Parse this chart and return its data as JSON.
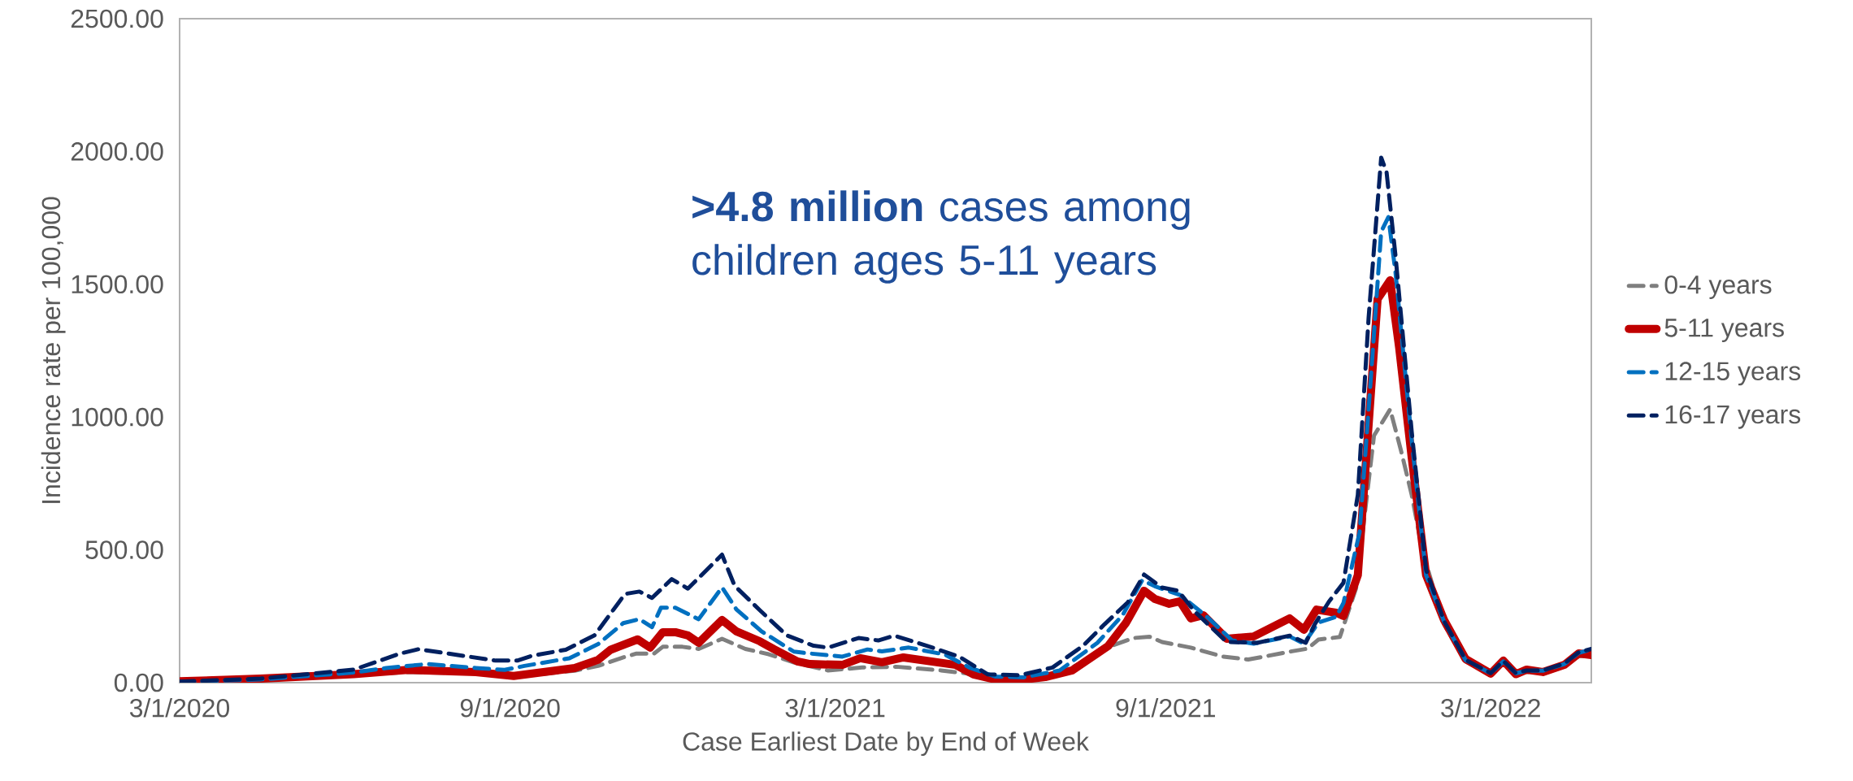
{
  "chart_data": {
    "type": "line",
    "xlabel": "Case Earliest Date by End of Week",
    "ylabel": "Incidence rate per 100,000",
    "annotations": [
      "**>4.8 million** cases among children ages 5-11 years"
    ],
    "xlim": [
      "2020-03-01",
      "2022-04-26"
    ],
    "xticks": [
      {
        "value": "2020-03-01",
        "label": "3/1/2020"
      },
      {
        "value": "2020-09-01",
        "label": "9/1/2020"
      },
      {
        "value": "2021-03-01",
        "label": "3/1/2021"
      },
      {
        "value": "2021-09-01",
        "label": "9/1/2021"
      },
      {
        "value": "2022-03-01",
        "label": "3/1/2022"
      }
    ],
    "ylim": [
      0,
      2500
    ],
    "yticks": [
      {
        "value": 0,
        "label": "0.00"
      },
      {
        "value": 500,
        "label": "500.00"
      },
      {
        "value": 1000,
        "label": "1000.00"
      },
      {
        "value": 1500,
        "label": "1500.00"
      },
      {
        "value": 2000,
        "label": "2000.00"
      },
      {
        "value": 2500,
        "label": "2500.00"
      }
    ],
    "grid": false,
    "legend": "right",
    "series": [
      {
        "name": "0-4 years",
        "color": "#7f7f7f",
        "line_style": "dashed",
        "x": [
          "2020-03-01",
          "2020-04-15",
          "2020-06-06",
          "2020-07-06",
          "2020-08-13",
          "2020-09-03",
          "2020-10-07",
          "2020-10-20",
          "2020-11-03",
          "2020-11-10",
          "2020-11-20",
          "2020-11-25",
          "2020-12-06",
          "2020-12-15",
          "2020-12-28",
          "2021-01-10",
          "2021-01-23",
          "2021-02-06",
          "2021-02-25",
          "2021-03-16",
          "2021-04-04",
          "2021-04-29",
          "2021-05-13",
          "2021-05-25",
          "2021-06-14",
          "2021-07-04",
          "2021-07-21",
          "2021-08-02",
          "2021-08-14",
          "2021-08-23",
          "2021-08-30",
          "2021-09-15",
          "2021-10-03",
          "2021-10-17",
          "2021-11-11",
          "2021-11-19",
          "2021-11-25",
          "2021-12-07",
          "2021-12-16",
          "2021-12-26",
          "2022-01-04",
          "2022-01-10",
          "2022-01-16",
          "2022-01-22",
          "2022-02-03",
          "2022-02-15",
          "2022-03-01",
          "2022-03-08",
          "2022-03-15",
          "2022-03-21",
          "2022-03-30",
          "2022-04-11",
          "2022-04-19",
          "2022-04-26"
        ],
        "values": [
          4,
          12,
          28,
          40,
          35,
          22,
          45,
          63,
          95,
          109,
          109,
          135,
          135,
          127,
          165,
          127,
          107,
          76,
          46,
          57,
          60,
          46,
          35,
          15,
          12,
          31,
          null,
          139,
          168,
          173,
          153,
          132,
          98,
          87,
          119,
          128,
          162,
          172,
          355,
          930,
          1029,
          875,
          707,
          495,
          220,
          80,
          30,
          75,
          30,
          40,
          40,
          62,
          100,
          100
        ]
      },
      {
        "name": "5-11 years",
        "color": "#c00000",
        "line_style": "solid",
        "x": [
          "2020-03-01",
          "2020-04-15",
          "2020-06-06",
          "2020-07-06",
          "2020-08-13",
          "2020-09-03",
          "2020-10-07",
          "2020-10-20",
          "2020-10-27",
          "2020-11-11",
          "2020-11-18",
          "2020-11-25",
          "2020-12-02",
          "2020-12-09",
          "2020-12-15",
          "2020-12-28",
          "2021-01-05",
          "2021-01-18",
          "2021-01-26",
          "2021-02-08",
          "2021-02-15",
          "2021-03-05",
          "2021-03-15",
          "2021-03-27",
          "2021-04-08",
          "2021-05-07",
          "2021-05-17",
          "2021-05-29",
          "2021-06-14",
          "2021-06-26",
          "2021-07-11",
          "2021-07-31",
          "2021-08-10",
          "2021-08-20",
          "2021-08-26",
          "2021-09-03",
          "2021-09-09",
          "2021-09-15",
          "2021-09-22",
          "2021-10-05",
          "2021-10-20",
          "2021-11-09",
          "2021-11-17",
          "2021-11-24",
          "2021-12-05",
          "2021-12-09",
          "2021-12-17",
          "2021-12-28",
          "2022-01-04",
          "2022-01-09",
          "2022-01-16",
          "2022-01-24",
          "2022-02-03",
          "2022-02-15",
          "2022-03-01",
          "2022-03-08",
          "2022-03-15",
          "2022-03-21",
          "2022-03-30",
          "2022-04-11",
          "2022-04-19",
          "2022-04-26"
        ],
        "values": [
          5,
          15,
          32,
          48,
          40,
          25,
          55,
          86,
          124,
          163,
          132,
          190,
          190,
          178,
          150,
          236,
          193,
          156,
          126,
          80,
          70,
          67,
          92,
          77,
          95,
          67,
          31,
          12,
          12,
          21,
          46,
          138,
          226,
          346,
          315,
          297,
          306,
          242,
          254,
          165,
          174,
          242,
          199,
          275,
          263,
          251,
          405,
          1444,
          1515,
          1262,
          848,
          405,
          236,
          89,
          34,
          83,
          32,
          49,
          40,
          67,
          110,
          104
        ]
      },
      {
        "name": "12-15 years",
        "color": "#0070c0",
        "line_style": "dashed",
        "x": [
          "2020-03-01",
          "2020-04-15",
          "2020-06-06",
          "2020-06-24",
          "2020-07-17",
          "2020-08-13",
          "2020-08-29",
          "2020-09-09",
          "2020-10-04",
          "2020-10-20",
          "2020-11-03",
          "2020-11-12",
          "2020-11-19",
          "2020-11-24",
          "2020-12-02",
          "2020-12-15",
          "2020-12-28",
          "2021-01-05",
          "2021-01-19",
          "2021-02-06",
          "2021-02-13",
          "2021-03-05",
          "2021-03-19",
          "2021-03-27",
          "2021-04-11",
          "2021-05-01",
          "2021-05-15",
          "2021-05-29",
          "2021-06-14",
          "2021-07-04",
          "2021-07-25",
          "2021-08-08",
          "2021-08-19",
          "2021-08-26",
          "2021-09-09",
          "2021-09-24",
          "2021-10-08",
          "2021-10-20",
          "2021-11-09",
          "2021-11-17",
          "2021-11-25",
          "2021-12-05",
          "2021-12-09",
          "2021-12-18",
          "2021-12-24",
          "2021-12-30",
          "2022-01-03",
          "2022-01-07",
          "2022-01-16",
          "2022-01-24",
          "2022-02-03",
          "2022-02-15",
          "2022-03-01",
          "2022-03-08",
          "2022-03-15",
          "2022-03-21",
          "2022-03-30",
          "2022-04-11",
          "2022-04-19",
          "2022-04-26"
        ],
        "values": [
          3,
          12,
          38,
          55,
          70,
          55,
          48,
          63,
          92,
          145,
          224,
          239,
          209,
          282,
          282,
          239,
          359,
          276,
          193,
          117,
          111,
          98,
          125,
          118,
          132,
          106,
          56,
          23,
          20,
          46,
          150,
          254,
          386,
          363,
          330,
          248,
          159,
          147,
          174,
          147,
          226,
          248,
          300,
          566,
          1123,
          1698,
          1753,
          1543,
          912,
          405,
          230,
          85,
          35,
          80,
          35,
          45,
          45,
          70,
          112,
          125
        ]
      },
      {
        "name": "16-17 years",
        "color": "#002060",
        "line_style": "dashed",
        "x": [
          "2020-03-01",
          "2020-04-15",
          "2020-06-06",
          "2020-07-02",
          "2020-07-12",
          "2020-08-24",
          "2020-09-05",
          "2020-09-13",
          "2020-10-02",
          "2020-10-18",
          "2020-11-04",
          "2020-11-12",
          "2020-11-19",
          "2020-11-30",
          "2020-12-09",
          "2020-12-28",
          "2021-01-04",
          "2021-01-18",
          "2021-02-02",
          "2021-02-17",
          "2021-02-25",
          "2021-03-14",
          "2021-03-25",
          "2021-04-03",
          "2021-04-21",
          "2021-05-09",
          "2021-05-25",
          "2021-06-12",
          "2021-06-30",
          "2021-07-17",
          "2021-07-29",
          "2021-08-11",
          "2021-08-20",
          "2021-08-30",
          "2021-09-08",
          "2021-09-17",
          "2021-10-05",
          "2021-10-22",
          "2021-11-09",
          "2021-11-18",
          "2021-11-23",
          "2021-12-01",
          "2021-12-09",
          "2021-12-17",
          "2021-12-23",
          "2021-12-30",
          "2022-01-02",
          "2022-01-07",
          "2022-01-16",
          "2022-01-24",
          "2022-02-03",
          "2022-02-15",
          "2022-03-01",
          "2022-03-08",
          "2022-03-15",
          "2022-03-21",
          "2022-03-30",
          "2022-04-11",
          "2022-04-19",
          "2022-04-26"
        ],
        "values": [
          4,
          15,
          49,
          110,
          126,
          83,
          83,
          101,
          124,
          178,
          334,
          343,
          319,
          390,
          354,
          482,
          365,
          273,
          178,
          139,
          132,
          168,
          159,
          177,
          139,
          98,
          31,
          28,
          57,
          139,
          220,
          303,
          407,
          358,
          346,
          269,
          153,
          150,
          177,
          150,
          220,
          306,
          376,
          707,
          1374,
          1977,
          1922,
          1606,
          945,
          425,
          232,
          86,
          36,
          82,
          36,
          46,
          46,
          72,
          114,
          127
        ]
      }
    ]
  }
}
